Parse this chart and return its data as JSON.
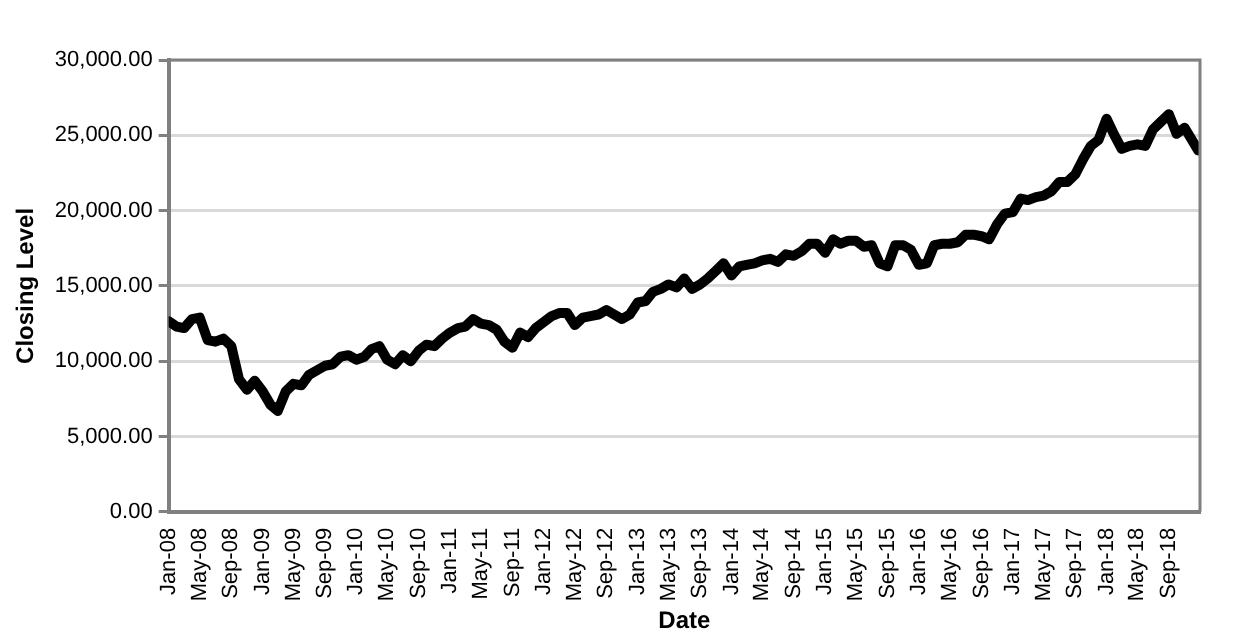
{
  "chart_data": {
    "type": "line",
    "xlabel": "Date",
    "ylabel": "Closing Level",
    "x": [
      "2008-01-02",
      "2008-02-01",
      "2008-03-01",
      "2008-04-01",
      "2008-05-01",
      "2008-06-01",
      "2008-07-01",
      "2008-08-01",
      "2008-09-01",
      "2008-10-01",
      "2008-11-01",
      "2008-12-01",
      "2009-01-01",
      "2009-02-01",
      "2009-03-01",
      "2009-04-01",
      "2009-05-01",
      "2009-06-01",
      "2009-07-01",
      "2009-08-01",
      "2009-09-01",
      "2009-10-01",
      "2009-11-01",
      "2009-12-01",
      "2010-01-01",
      "2010-02-01",
      "2010-03-01",
      "2010-04-01",
      "2010-05-01",
      "2010-06-01",
      "2010-07-01",
      "2010-08-01",
      "2010-09-01",
      "2010-10-01",
      "2010-11-01",
      "2010-12-01",
      "2011-01-01",
      "2011-02-01",
      "2011-03-01",
      "2011-04-01",
      "2011-05-01",
      "2011-06-01",
      "2011-07-01",
      "2011-08-01",
      "2011-09-01",
      "2011-10-01",
      "2011-11-01",
      "2011-12-01",
      "2012-01-01",
      "2012-02-01",
      "2012-03-01",
      "2012-04-01",
      "2012-05-01",
      "2012-06-01",
      "2012-07-01",
      "2012-08-01",
      "2012-09-01",
      "2012-10-01",
      "2012-11-01",
      "2012-12-01",
      "2013-01-01",
      "2013-02-01",
      "2013-03-01",
      "2013-04-01",
      "2013-05-01",
      "2013-06-01",
      "2013-07-01",
      "2013-08-01",
      "2013-09-01",
      "2013-10-01",
      "2013-11-01",
      "2013-12-01",
      "2014-01-01",
      "2014-02-01",
      "2014-03-01",
      "2014-04-01",
      "2014-05-01",
      "2014-06-01",
      "2014-07-01",
      "2014-08-01",
      "2014-09-01",
      "2014-10-01",
      "2014-11-01",
      "2014-12-01",
      "2015-01-01",
      "2015-02-01",
      "2015-03-01",
      "2015-04-01",
      "2015-05-01",
      "2015-06-01",
      "2015-07-01",
      "2015-08-01",
      "2015-09-01",
      "2015-10-01",
      "2015-11-01",
      "2015-12-01",
      "2016-01-01",
      "2016-02-01",
      "2016-03-01",
      "2016-04-01",
      "2016-05-01",
      "2016-06-01",
      "2016-07-01",
      "2016-08-01",
      "2016-09-01",
      "2016-10-01",
      "2016-11-01",
      "2016-12-01",
      "2017-01-01",
      "2017-02-01",
      "2017-03-01",
      "2017-04-01",
      "2017-05-01",
      "2017-06-01",
      "2017-07-01",
      "2017-08-01",
      "2017-09-01",
      "2017-10-01",
      "2017-11-01",
      "2017-12-01",
      "2018-01-01",
      "2018-02-01",
      "2018-03-01",
      "2018-04-01",
      "2018-05-01",
      "2018-06-01",
      "2018-07-01",
      "2018-08-01",
      "2018-09-01",
      "2018-10-01",
      "2018-11-01",
      "2018-12-24"
    ],
    "series": [
      {
        "color": "#000000",
        "values": [
          12650,
          12300,
          12200,
          12800,
          12900,
          11400,
          11300,
          11500,
          11000,
          8800,
          8100,
          8700,
          8000,
          7100,
          6700,
          8000,
          8500,
          8400,
          9100,
          9400,
          9700,
          9800,
          10300,
          10400,
          10100,
          10300,
          10800,
          11000,
          10100,
          9800,
          10400,
          10000,
          10700,
          11100,
          11000,
          11500,
          11900,
          12200,
          12300,
          12800,
          12500,
          12400,
          12100,
          11300,
          10900,
          11900,
          11600,
          12200,
          12600,
          13000,
          13200,
          13200,
          12400,
          12900,
          13000,
          13100,
          13400,
          13100,
          12800,
          13100,
          13900,
          14000,
          14600,
          14800,
          15100,
          14900,
          15500,
          14800,
          15100,
          15500,
          16000,
          16500,
          15700,
          16300,
          16400,
          16500,
          16700,
          16800,
          16600,
          17100,
          17000,
          17300,
          17800,
          17800,
          17200,
          18100,
          17800,
          18000,
          18000,
          17600,
          17700,
          16500,
          16300,
          17700,
          17700,
          17400,
          16400,
          16500,
          17700,
          17800,
          17800,
          17900,
          18400,
          18400,
          18300,
          18100,
          19100,
          19800,
          19900,
          20800,
          20700,
          20900,
          21000,
          21300,
          21900,
          21900,
          22400,
          23400,
          24300,
          24700,
          26100,
          25000,
          24100,
          24300,
          24400,
          24300,
          25400,
          25900,
          26400,
          25100,
          25500,
          24000
        ]
      }
    ],
    "xlim": [
      "2008-01-01",
      "2018-12-31"
    ],
    "xticks": [
      {
        "value": "2008-01",
        "label": "Jan-08"
      },
      {
        "value": "2008-05",
        "label": "May-08"
      },
      {
        "value": "2008-09",
        "label": "Sep-08"
      },
      {
        "value": "2009-01",
        "label": "Jan-09"
      },
      {
        "value": "2009-05",
        "label": "May-09"
      },
      {
        "value": "2009-09",
        "label": "Sep-09"
      },
      {
        "value": "2010-01",
        "label": "Jan-10"
      },
      {
        "value": "2010-05",
        "label": "May-10"
      },
      {
        "value": "2010-09",
        "label": "Sep-10"
      },
      {
        "value": "2011-01",
        "label": "Jan-11"
      },
      {
        "value": "2011-05",
        "label": "May-11"
      },
      {
        "value": "2011-09",
        "label": "Sep-11"
      },
      {
        "value": "2012-01",
        "label": "Jan-12"
      },
      {
        "value": "2012-05",
        "label": "May-12"
      },
      {
        "value": "2012-09",
        "label": "Sep-12"
      },
      {
        "value": "2013-01",
        "label": "Jan-13"
      },
      {
        "value": "2013-05",
        "label": "May-13"
      },
      {
        "value": "2013-09",
        "label": "Sep-13"
      },
      {
        "value": "2014-01",
        "label": "Jan-14"
      },
      {
        "value": "2014-05",
        "label": "May-14"
      },
      {
        "value": "2014-09",
        "label": "Sep-14"
      },
      {
        "value": "2015-01",
        "label": "Jan-15"
      },
      {
        "value": "2015-05",
        "label": "May-15"
      },
      {
        "value": "2015-09",
        "label": "Sep-15"
      },
      {
        "value": "2016-01",
        "label": "Jan-16"
      },
      {
        "value": "2016-05",
        "label": "May-16"
      },
      {
        "value": "2016-09",
        "label": "Sep-16"
      },
      {
        "value": "2017-01",
        "label": "Jan-17"
      },
      {
        "value": "2017-05",
        "label": "May-17"
      },
      {
        "value": "2017-09",
        "label": "Sep-17"
      },
      {
        "value": "2018-01",
        "label": "Jan-18"
      },
      {
        "value": "2018-05",
        "label": "May-18"
      },
      {
        "value": "2018-09",
        "label": "Sep-18"
      }
    ],
    "ylim": [
      0,
      30000
    ],
    "yticks": [
      {
        "value": 0,
        "label": "0.00"
      },
      {
        "value": 5000,
        "label": "5,000.00"
      },
      {
        "value": 10000,
        "label": "10,000.00"
      },
      {
        "value": 15000,
        "label": "15,000.00"
      },
      {
        "value": 20000,
        "label": "20,000.00"
      },
      {
        "value": 25000,
        "label": "25,000.00"
      },
      {
        "value": 30000,
        "label": "30,000.00"
      }
    ],
    "grid": "y",
    "legend": false,
    "marker": "none",
    "line_style": "solid"
  }
}
